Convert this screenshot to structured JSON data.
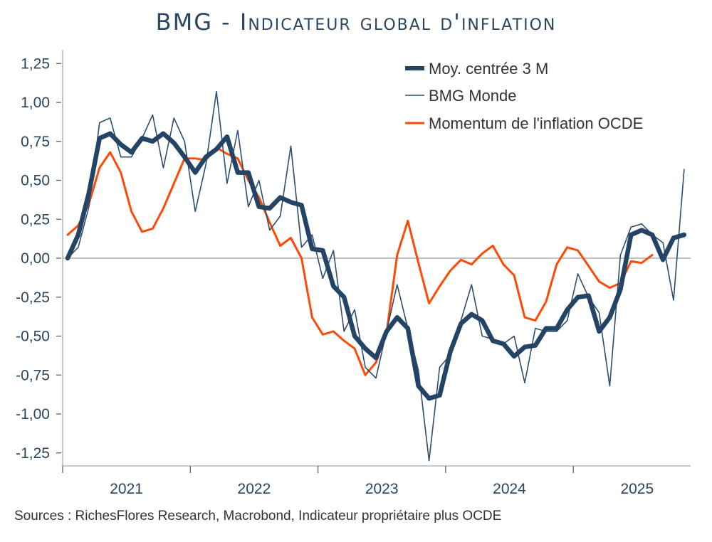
{
  "title": "BMG - Indicateur global d'inflation",
  "source": "Sources : RichesFlores Research, Macrobond, Indicateur propriétaire plus OCDE",
  "colors": {
    "title": "#2a4560",
    "moy": "#244466",
    "bmg": "#2f4d6e",
    "ocde": "#ff4a06",
    "axis": "#a9b8c8",
    "zero": "#9a9a9a",
    "tick_text": "#2a4560"
  },
  "chart_data": {
    "type": "line",
    "title": "BMG - Indicateur global d'inflation",
    "xlabel": "",
    "ylabel": "",
    "ylim": [
      -1.35,
      1.35
    ],
    "yticks": [
      1.25,
      1.0,
      0.75,
      0.5,
      0.25,
      0.0,
      -0.25,
      -0.5,
      -0.75,
      -1.0,
      -1.25
    ],
    "ytick_labels": [
      "1,25",
      "1,00",
      "0,75",
      "0,50",
      "0,25",
      "0,00",
      "-0,25",
      "-0,50",
      "-0,75",
      "-1,00",
      "-1,25"
    ],
    "xtick_labels": [
      "2021",
      "2022",
      "2023",
      "2024",
      "2025"
    ],
    "x_start": "2021-01",
    "x_frequency": "monthly",
    "grid": false,
    "zero_line": true,
    "legend_position": "top-right",
    "series": [
      {
        "name": "Moy. centrée 3 M",
        "style": "thick",
        "values": [
          0.0,
          0.15,
          0.42,
          0.77,
          0.8,
          0.73,
          0.68,
          0.77,
          0.75,
          0.8,
          0.74,
          0.65,
          0.55,
          0.65,
          0.7,
          0.78,
          0.55,
          0.55,
          0.33,
          0.32,
          0.39,
          0.36,
          0.34,
          0.06,
          0.05,
          -0.18,
          -0.25,
          -0.5,
          -0.58,
          -0.64,
          -0.47,
          -0.38,
          -0.45,
          -0.82,
          -0.9,
          -0.88,
          -0.6,
          -0.42,
          -0.36,
          -0.4,
          -0.53,
          -0.55,
          -0.63,
          -0.57,
          -0.56,
          -0.45,
          -0.45,
          -0.33,
          -0.25,
          -0.24,
          -0.47,
          -0.38,
          -0.2,
          0.15,
          0.18,
          0.15,
          -0.01,
          0.13,
          0.15
        ]
      },
      {
        "name": "BMG Monde",
        "style": "thin",
        "values": [
          0.0,
          0.07,
          0.33,
          0.87,
          0.9,
          0.65,
          0.65,
          0.77,
          0.92,
          0.58,
          0.9,
          0.75,
          0.3,
          0.6,
          1.07,
          0.48,
          0.82,
          0.33,
          0.5,
          0.18,
          0.27,
          0.72,
          0.07,
          0.15,
          -0.13,
          0.05,
          -0.47,
          -0.33,
          -0.7,
          -0.77,
          -0.47,
          -0.17,
          -0.45,
          -0.72,
          -1.3,
          -0.7,
          -0.62,
          -0.4,
          -0.17,
          -0.5,
          -0.52,
          -0.55,
          -0.5,
          -0.8,
          -0.45,
          -0.47,
          -0.47,
          -0.4,
          -0.1,
          -0.25,
          -0.35,
          -0.82,
          0.02,
          0.2,
          0.22,
          0.15,
          0.1,
          -0.27,
          0.57
        ]
      },
      {
        "name": "Momentum de l'inflation OCDE",
        "style": "medium",
        "values": [
          0.15,
          0.21,
          0.35,
          0.58,
          0.68,
          0.55,
          0.3,
          0.17,
          0.19,
          0.32,
          0.48,
          0.64,
          0.64,
          0.63,
          0.71,
          0.67,
          0.64,
          0.5,
          0.39,
          0.23,
          0.08,
          0.13,
          0.0,
          -0.38,
          -0.49,
          -0.47,
          -0.53,
          -0.58,
          -0.75,
          -0.67,
          -0.48,
          0.02,
          0.24,
          -0.03,
          -0.29,
          -0.18,
          -0.08,
          -0.01,
          -0.04,
          0.03,
          0.08,
          -0.04,
          -0.11,
          -0.38,
          -0.4,
          -0.28,
          -0.04,
          0.07,
          0.05,
          -0.05,
          -0.15,
          -0.19,
          -0.16,
          -0.02,
          -0.03,
          0.02
        ]
      }
    ]
  }
}
